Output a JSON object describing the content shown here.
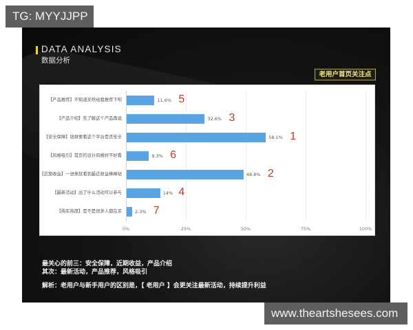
{
  "watermarks": {
    "top": "TG: MYYJJPP",
    "bottom": "www.theartshesees.com"
  },
  "slide": {
    "title_en": "DATA ANALYSIS",
    "title_cn": "数据分析",
    "badge": "老用户首页关注点",
    "accent_color": "#e8d84a",
    "bar_color": "#5aa4e3",
    "rank_color": "#c0392b",
    "summary": {
      "line1": "最关心的前三：安全保障，近期收益，产品介绍",
      "line2": "其次：最新活动，产品推荐，风格吸引",
      "line3": "解析：老用户与新手用户的区别是，【 老用户 】会更关注最新活动，持续提升利益"
    }
  },
  "chart_data": {
    "type": "bar",
    "orientation": "horizontal",
    "title": "老用户首页关注点",
    "xlabel": "",
    "ylabel": "",
    "xlim": [
      0,
      100
    ],
    "x_ticks": [
      "0%",
      "25%",
      "50%",
      "75%",
      "100%"
    ],
    "grid": true,
    "legend": null,
    "categories": [
      "【产品推荐】不知道买啥给我推荐下呗",
      "【产品介绍】先了解这个产品再说",
      "【安全保障】钱财要看这个平台是否安全",
      "【风格吸引】首页的设计风格好不好看",
      "【近期收益】一进来就看到最近收益棒棒哒",
      "【最新活动】出了什么活动可以参与",
      "【购买热度】是不是很多人都在买"
    ],
    "values": [
      11.6,
      32.6,
      58.1,
      9.3,
      48.8,
      14,
      2.3
    ],
    "value_labels": [
      "11.6%",
      "32.6%",
      "58.1%",
      "9.3%",
      "48.8%",
      "14%",
      "2.3%"
    ],
    "ranks": [
      "5",
      "3",
      "1",
      "6",
      "2",
      "4",
      "7"
    ]
  }
}
